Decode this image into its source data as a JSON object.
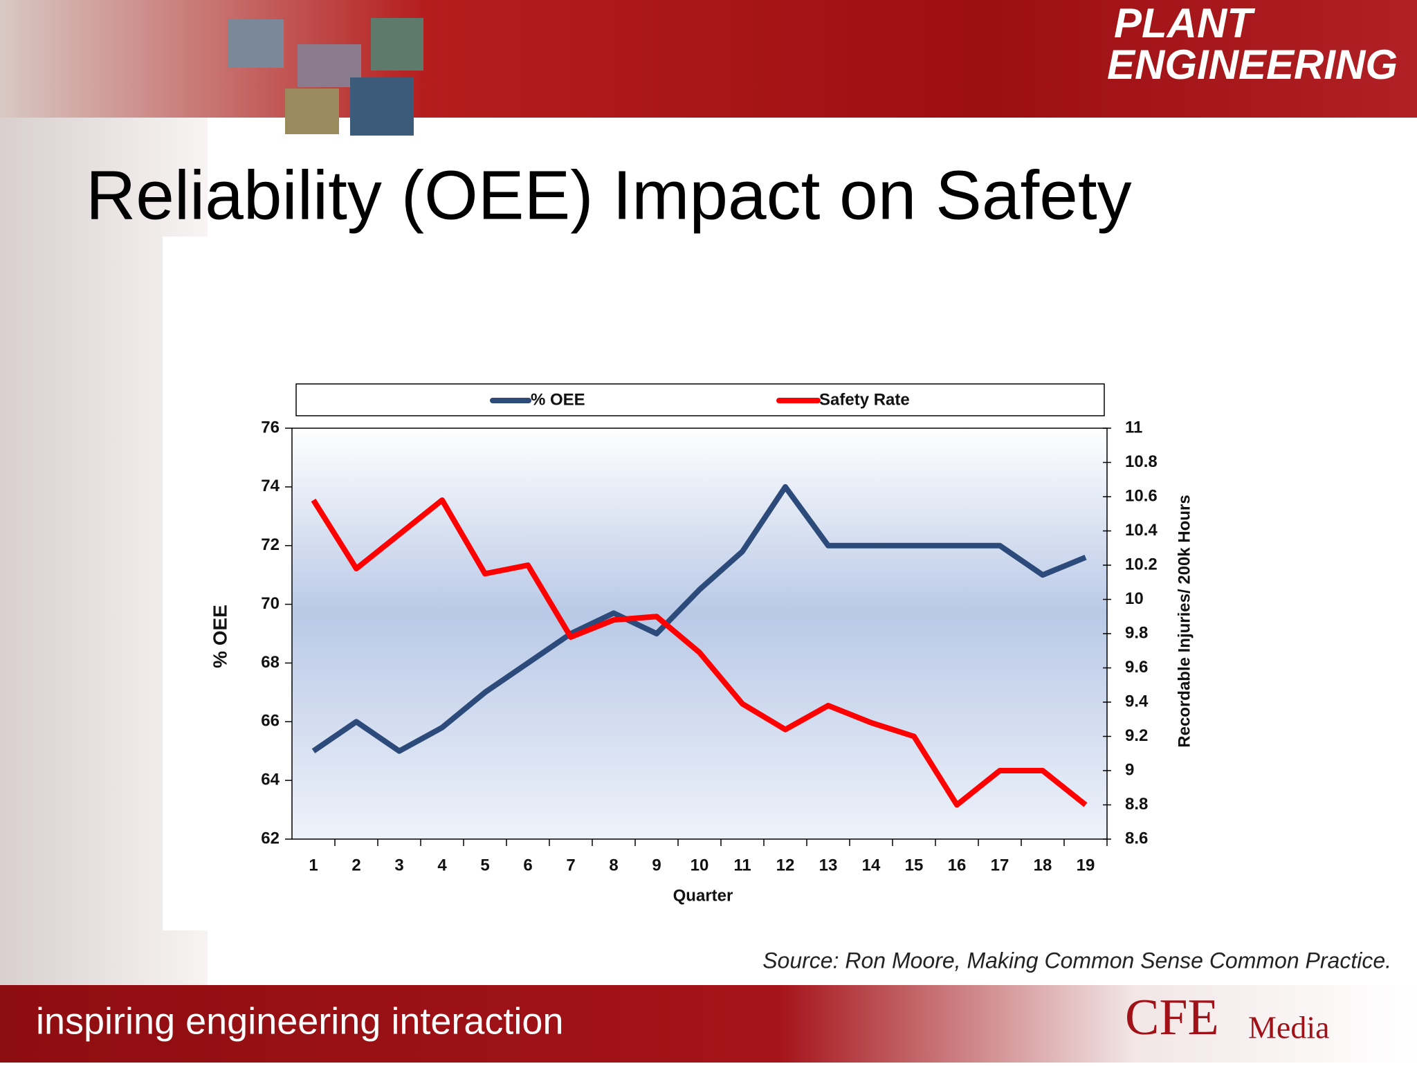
{
  "slide": {
    "logo_top": [
      "PLANT",
      "ENGINEERING"
    ],
    "source": "Source:  Ron Moore, Making Common Sense Common Practice.",
    "tagline": "inspiring engineering interaction",
    "logo_bottom": "CFE",
    "logo_bottom_2": "Media"
  },
  "chart_data": {
    "type": "line",
    "title": "Reliability (OEE) Impact on Safety",
    "categories": [
      "1",
      "2",
      "3",
      "4",
      "5",
      "6",
      "7",
      "8",
      "9",
      "10",
      "11",
      "12",
      "13",
      "14",
      "15",
      "16",
      "17",
      "18",
      "19"
    ],
    "series": [
      {
        "name": "% OEE",
        "color": "#2c4a7a",
        "values": [
          65,
          66,
          65,
          65.8,
          67,
          68,
          69,
          69.7,
          69,
          70.5,
          71.8,
          74,
          72,
          72,
          72,
          72,
          72,
          71,
          71.6
        ]
      },
      {
        "name": "Safety Rate",
        "color": "#ff0000",
        "axis": "y2",
        "values": [
          10.58,
          10.18,
          10.38,
          10.58,
          10.15,
          10.2,
          9.78,
          9.88,
          9.9,
          9.69,
          9.39,
          9.24,
          9.38,
          9.28,
          9.2,
          8.8,
          9,
          9,
          8.8
        ]
      }
    ],
    "xlabel": "Quarter",
    "ylabel": "% OEE",
    "y2label": "Recordable Injuries/ 200k Hours",
    "ylim": [
      62,
      76
    ],
    "yticks": [
      62,
      64,
      66,
      68,
      70,
      72,
      74,
      76
    ],
    "y2lim": [
      8.6,
      11
    ],
    "y2ticks": [
      8.6,
      8.8,
      9,
      9.2,
      9.4,
      9.6,
      9.8,
      10,
      10.2,
      10.4,
      10.6,
      10.8,
      11
    ],
    "legend": "top",
    "grid": false
  }
}
